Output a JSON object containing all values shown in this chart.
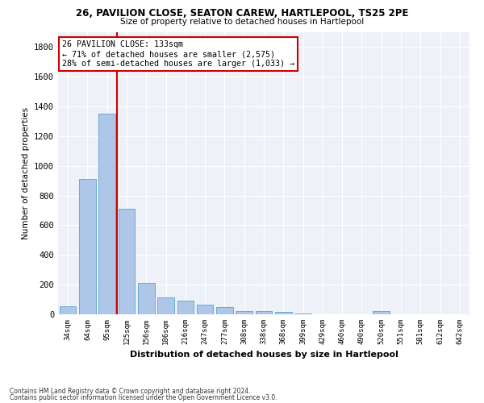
{
  "title1": "26, PAVILION CLOSE, SEATON CAREW, HARTLEPOOL, TS25 2PE",
  "title2": "Size of property relative to detached houses in Hartlepool",
  "xlabel": "Distribution of detached houses by size in Hartlepool",
  "ylabel": "Number of detached properties",
  "categories": [
    "34sqm",
    "64sqm",
    "95sqm",
    "125sqm",
    "156sqm",
    "186sqm",
    "216sqm",
    "247sqm",
    "277sqm",
    "308sqm",
    "338sqm",
    "368sqm",
    "399sqm",
    "429sqm",
    "460sqm",
    "490sqm",
    "520sqm",
    "551sqm",
    "581sqm",
    "612sqm",
    "642sqm"
  ],
  "values": [
    55,
    910,
    1350,
    710,
    210,
    115,
    95,
    65,
    48,
    24,
    21,
    17,
    8,
    2,
    0,
    0,
    20,
    0,
    0,
    0,
    0
  ],
  "bar_color": "#aec6e8",
  "bar_edge_color": "#6aaad4",
  "vline_pos": 2.5,
  "vline_color": "#cc0000",
  "annotation_text": "26 PAVILION CLOSE: 133sqm\n← 71% of detached houses are smaller (2,575)\n28% of semi-detached houses are larger (1,033) →",
  "annotation_box_color": "#ffffff",
  "annotation_box_edge_color": "#cc0000",
  "ylim": [
    0,
    1900
  ],
  "yticks": [
    0,
    200,
    400,
    600,
    800,
    1000,
    1200,
    1400,
    1600,
    1800
  ],
  "footnote1": "Contains HM Land Registry data © Crown copyright and database right 2024.",
  "footnote2": "Contains public sector information licensed under the Open Government Licence v3.0.",
  "bg_color": "#eef2f8"
}
